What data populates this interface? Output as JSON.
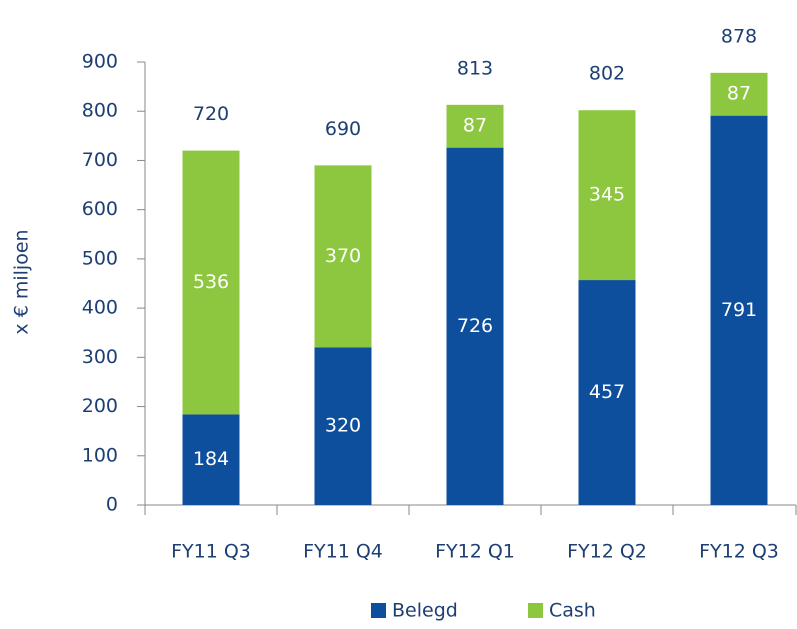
{
  "chart_data": {
    "type": "stacked_bar",
    "y_label": "x € miljoen",
    "categories": [
      "FY11 Q3",
      "FY11 Q4",
      "FY12 Q1",
      "FY12 Q2",
      "FY12 Q3"
    ],
    "series": [
      {
        "name": "Belegd",
        "color": "#0d4f9c",
        "values": [
          184,
          320,
          726,
          457,
          791
        ]
      },
      {
        "name": "Cash",
        "color": "#8dc63f",
        "values": [
          536,
          370,
          87,
          345,
          87
        ]
      }
    ],
    "totals": [
      720,
      690,
      813,
      802,
      878
    ],
    "ylim": [
      0,
      900
    ],
    "yticks": [
      0,
      100,
      200,
      300,
      400,
      500,
      600,
      700,
      800,
      900
    ],
    "legend": "bottom"
  }
}
